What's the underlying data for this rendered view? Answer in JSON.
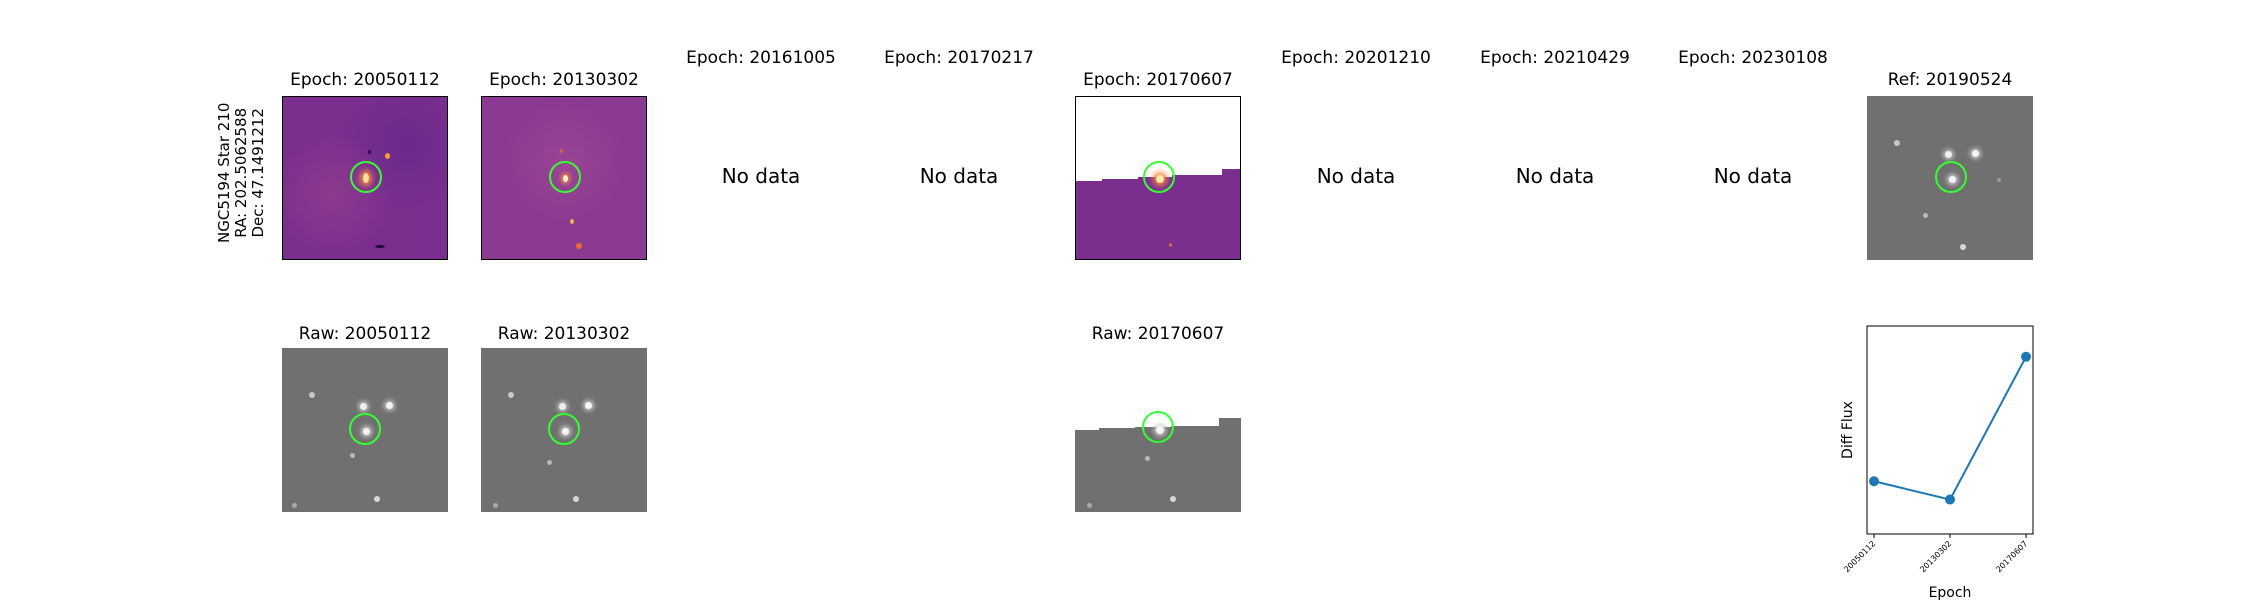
{
  "target": {
    "name": "NGC5194 Star 210",
    "ra": "RA: 202.5062588",
    "dec": "Dec: 47.1491212"
  },
  "colors": {
    "diff_cmap_bg": "#7a2f8f",
    "raw_bg": "#6e6e6e",
    "marker": "#33ff33",
    "line": "#1f77b4"
  },
  "epochs": [
    {
      "title": "Epoch: 20050112",
      "no_data": ""
    },
    {
      "title": "Epoch: 20130302",
      "no_data": ""
    },
    {
      "title": "Epoch: 20161005",
      "no_data": "No data"
    },
    {
      "title": "Epoch: 20170217",
      "no_data": "No data"
    },
    {
      "title": "Epoch: 20170607",
      "no_data": ""
    },
    {
      "title": "Epoch: 20201210",
      "no_data": "No data"
    },
    {
      "title": "Epoch: 20210429",
      "no_data": "No data"
    },
    {
      "title": "Epoch: 20230108",
      "no_data": "No data"
    }
  ],
  "ref": {
    "title": "Ref: 20190524"
  },
  "raws": [
    {
      "title": "Raw: 20050112"
    },
    {
      "title": "Raw: 20130302"
    },
    {
      "title": "Raw: 20170607"
    }
  ],
  "chart_data": {
    "type": "line",
    "categories": [
      "20050112",
      "20130302",
      "20170607"
    ],
    "values": [
      0.22,
      0.12,
      0.9
    ],
    "ylabel": "Diff Flux",
    "xlabel": "Epoch",
    "y_ticks_visible": false,
    "grid": false,
    "marker": "circle"
  }
}
